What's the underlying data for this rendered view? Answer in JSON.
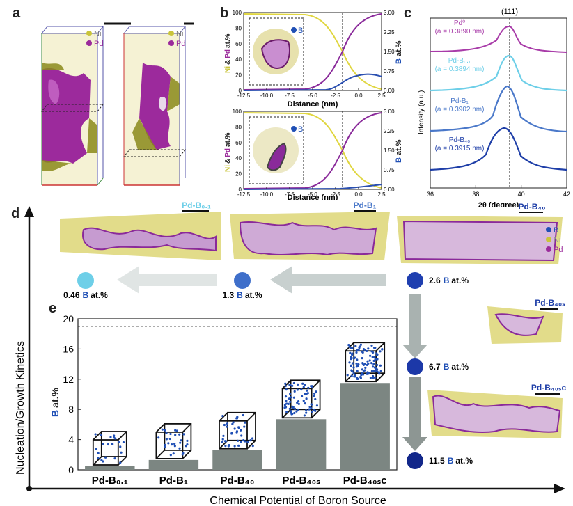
{
  "panels": {
    "a": "a",
    "b": "b",
    "c": "c",
    "d": "d",
    "e": "e"
  },
  "colors": {
    "ni": "#c9c43a",
    "pd": "#9b2a9b",
    "b": "#1f4fb5",
    "gray": "#7c8682"
  },
  "panel_a": {
    "legend_ni": "Ni",
    "legend_pd": "Pd"
  },
  "panel_b": {
    "top": {
      "legend_b": "B"
    },
    "bottom": {
      "legend_b": "B"
    },
    "left_ylabel_ni": "Ni",
    "left_ylabel_amp": "&",
    "left_ylabel_pd": "Pd",
    "left_ylabel_rest": "at.%",
    "right_ylabel_b": "B",
    "right_ylabel_rest": "at.%",
    "xlabel": "Distance (nm)",
    "x_ticks": [
      "-12.5",
      "-10.0",
      "-7.5",
      "-5.0",
      "-2.5",
      "0.0",
      "2.5"
    ],
    "left_ticks": [
      "0",
      "20",
      "40",
      "60",
      "80",
      "100"
    ],
    "right_ticks": [
      "0.00",
      "0.75",
      "1.50",
      "2.25",
      "3.00"
    ]
  },
  "panel_c": {
    "peak_label": "(111)",
    "ylabel": "Intensity (a.u.)",
    "xlabel": "2θ (degree)",
    "x_ticks": [
      "36",
      "38",
      "40",
      "42"
    ],
    "curves": [
      {
        "name": "Pd⁰",
        "a": "(a = 0.3890 nm)",
        "color": "#a83ba8"
      },
      {
        "name": "Pd-B₀.₁",
        "a": "(a = 0.3894 nm)",
        "color": "#6ecfe8"
      },
      {
        "name": "Pd-B₁",
        "a": "(a = 0.3902 nm)",
        "color": "#4a78c9"
      },
      {
        "name": "Pd-B₄₀",
        "a": "(a = 0.3915 nm)",
        "color": "#1f3fa8"
      }
    ]
  },
  "panel_d": {
    "labels": [
      "Pd-B₀.₁",
      "Pd-B₁",
      "Pd-B₄₀",
      "Pd-B₄₀ₛ",
      "Pd-B₄₀ₛc"
    ],
    "legend": [
      "B",
      "Ni",
      "Pd"
    ],
    "concentrations": [
      {
        "value": "0.46",
        "unit": "at.%",
        "el": "B"
      },
      {
        "value": "1.3",
        "unit": "at.%",
        "el": "B"
      },
      {
        "value": "2.6",
        "unit": "at.%",
        "el": "B"
      },
      {
        "value": "6.7",
        "unit": "at.%",
        "el": "B"
      },
      {
        "value": "11.5",
        "unit": "at.%",
        "el": "B"
      }
    ],
    "yaxis": "Nucleation/Growth Kinetics",
    "xaxis": "Chemical Potential of Boron Source"
  },
  "chart_data": {
    "type": "bar",
    "categories": [
      "Pd-B0.1",
      "Pd-B1",
      "Pd-B40",
      "Pd-B40s",
      "Pd-B40sc"
    ],
    "category_labels": [
      "Pd-B₀.₁",
      "Pd-B₁",
      "Pd-B₄₀",
      "Pd-B₄₀ₛ",
      "Pd-B₄₀ₛc"
    ],
    "values": [
      0.46,
      1.3,
      2.6,
      6.7,
      11.5
    ],
    "ylabel_el": "B",
    "ylabel_rest": "at.%",
    "ylim": [
      0,
      20
    ],
    "yticks": [
      "0",
      "4",
      "8",
      "12",
      "16",
      "20"
    ],
    "reference_line": 19
  }
}
